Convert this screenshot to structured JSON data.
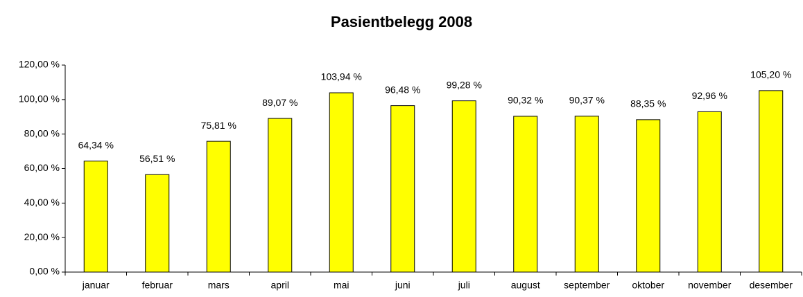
{
  "chart_data": {
    "type": "bar",
    "title": "Pasientbelegg 2008",
    "categories": [
      "januar",
      "februar",
      "mars",
      "april",
      "mai",
      "juni",
      "juli",
      "august",
      "september",
      "oktober",
      "november",
      "desember"
    ],
    "values": [
      64.34,
      56.51,
      75.81,
      89.07,
      103.94,
      96.48,
      99.28,
      90.32,
      90.37,
      88.35,
      92.96,
      105.2
    ],
    "value_labels": [
      "64,34 %",
      "56,51 %",
      "75,81 %",
      "89,07 %",
      "103,94 %",
      "96,48 %",
      "99,28 %",
      "90,32 %",
      "90,37 %",
      "88,35 %",
      "92,96 %",
      "105,20 %"
    ],
    "color": "#ffff00",
    "ylim": [
      0,
      120
    ],
    "yticks": [
      {
        "value": 0,
        "label": "0,00 %"
      },
      {
        "value": 20,
        "label": "20,00 %"
      },
      {
        "value": 40,
        "label": "40,00 %"
      },
      {
        "value": 60,
        "label": "60,00 %"
      },
      {
        "value": 80,
        "label": "80,00 %"
      },
      {
        "value": 100,
        "label": "100,00 %"
      },
      {
        "value": 120,
        "label": "120,00 %"
      }
    ],
    "grid": false
  }
}
